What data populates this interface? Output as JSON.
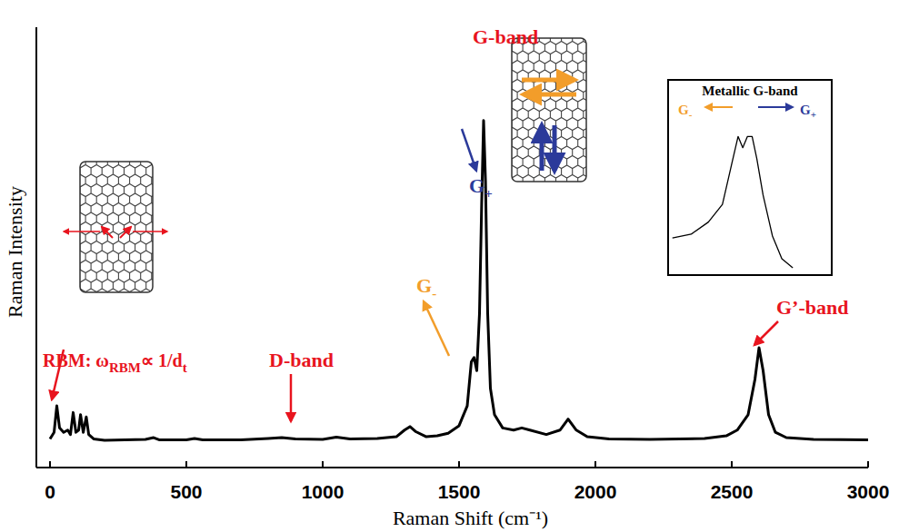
{
  "chart_data": {
    "type": "line",
    "x_label": "Raman Shift (cm⁻¹)",
    "y_label": "Raman Intensity",
    "xlim": [
      -50,
      3000
    ],
    "xticks": [
      0,
      500,
      1000,
      1500,
      2000,
      2500,
      3000
    ],
    "ylim": [
      0,
      100
    ],
    "tick_labels": "x",
    "grid": false,
    "x": [
      0,
      15,
      25,
      35,
      50,
      65,
      75,
      85,
      95,
      105,
      112,
      122,
      133,
      142,
      160,
      200,
      350,
      380,
      400,
      500,
      530,
      560,
      700,
      800,
      850,
      900,
      1000,
      1050,
      1100,
      1200,
      1270,
      1300,
      1320,
      1340,
      1380,
      1420,
      1460,
      1500,
      1530,
      1545,
      1555,
      1565,
      1575,
      1583,
      1590,
      1597,
      1605,
      1615,
      1630,
      1660,
      1700,
      1730,
      1760,
      1820,
      1870,
      1900,
      1930,
      1970,
      2050,
      2200,
      2400,
      2480,
      2520,
      2560,
      2585,
      2600,
      2615,
      2635,
      2660,
      2700,
      2800,
      3000
    ],
    "series": [
      {
        "color": "#000000",
        "values": [
          6.5,
          8,
          14,
          9,
          8,
          8.5,
          7.5,
          12.5,
          8,
          8.5,
          12,
          8,
          11.5,
          7.5,
          6.5,
          6.2,
          6.4,
          6.8,
          6.3,
          6.3,
          6.6,
          6.3,
          6.3,
          6.6,
          6.8,
          6.5,
          6.4,
          6.9,
          6.5,
          6.6,
          7,
          8.5,
          9.3,
          8.2,
          7,
          7.2,
          7.8,
          9.5,
          14,
          24,
          25,
          22,
          35,
          60,
          78.8,
          65,
          35,
          18,
          12,
          9,
          8.5,
          9,
          8.5,
          7.5,
          8.5,
          11,
          8.5,
          7,
          6.5,
          6.4,
          6.6,
          7.2,
          8.5,
          12,
          20,
          27.2,
          22,
          12,
          8,
          6.8,
          6.4,
          6.3
        ]
      }
    ],
    "annotations": [
      {
        "parts": [
          "RBM: ω",
          "RBM",
          "∝ 1/d",
          "t"
        ],
        "color": "#e8141e"
      },
      {
        "parts": [
          "D-band"
        ],
        "color": "#e8141e"
      },
      {
        "parts": [
          "G-band"
        ],
        "color": "#e8141e"
      },
      {
        "parts": [
          "G",
          "+"
        ],
        "color": "#2b3a9a"
      },
      {
        "parts": [
          "G",
          "-"
        ],
        "color": "#f29d2a"
      },
      {
        "parts": [
          "G’-band"
        ],
        "color": "#e8141e"
      }
    ],
    "inset": {
      "type": "line",
      "title": "Metallic G-band",
      "xlim": [
        0,
        100
      ],
      "ylim": [
        0,
        100
      ],
      "tick_labels": false,
      "x": [
        1,
        13,
        24,
        33,
        39,
        43,
        46,
        49,
        52,
        55,
        59,
        65,
        71,
        78
      ],
      "values": [
        18.5,
        20.5,
        27,
        36.5,
        58.5,
        73,
        67,
        73,
        73,
        61,
        41.5,
        19.5,
        7.3,
        2.4
      ],
      "color": "#000000",
      "labels": [
        {
          "parts": [
            "G",
            "-"
          ],
          "color": "#f29d2a"
        },
        {
          "parts": [
            "G",
            "+"
          ],
          "color": "#2b3a9a"
        }
      ]
    }
  }
}
